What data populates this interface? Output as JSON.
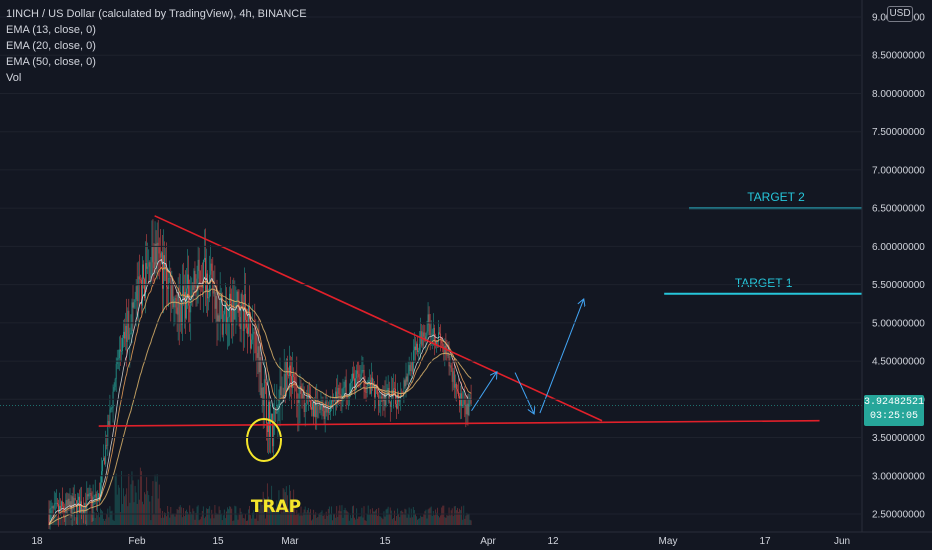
{
  "header": {
    "title": "1INCH / US Dollar (calculated by TradingView), 4h, BINANCE",
    "indicators": [
      "EMA (13, close, 0)",
      "EMA (20, close, 0)",
      "EMA (50, close, 0)",
      "Vol"
    ]
  },
  "currency_badge": "USD",
  "last_price": {
    "value": "3.92482521",
    "countdown": "03:25:05"
  },
  "colors": {
    "background": "#131722",
    "up": "#26a69a",
    "down": "#ef5350",
    "trendline": "#e0202a",
    "target": "#26c6da",
    "arrow": "#42a5f5",
    "annotation": "#f5e62b"
  },
  "chart_data": {
    "type": "candlestick",
    "y_ticks": [
      "2.50000000",
      "3.00000000",
      "3.50000000",
      "4.00000000",
      "4.50000000",
      "5.00000000",
      "5.50000000",
      "6.00000000",
      "6.50000000",
      "7.00000000",
      "7.50000000",
      "8.00000000",
      "8.50000000",
      "9.00000000"
    ],
    "y_tick_values": [
      2.5,
      3.0,
      3.5,
      4.0,
      4.5,
      5.0,
      5.5,
      6.0,
      6.5,
      7.0,
      7.5,
      8.0,
      8.5,
      9.0
    ],
    "x_ticks": [
      "18",
      "Feb",
      "15",
      "Mar",
      "15",
      "Apr",
      "12",
      "May",
      "17",
      "Jun"
    ],
    "ylim": [
      2.45,
      9.1
    ],
    "price_path": [
      [
        "2021-01-18",
        2.5
      ],
      [
        "2021-01-26",
        2.7
      ],
      [
        "2021-01-29",
        4.5
      ],
      [
        "2021-02-01",
        5.3
      ],
      [
        "2021-02-04",
        5.9
      ],
      [
        "2021-02-06",
        5.6
      ],
      [
        "2021-02-08",
        5.2
      ],
      [
        "2021-02-12",
        5.7
      ],
      [
        "2021-02-15",
        5.1
      ],
      [
        "2021-02-18",
        5.2
      ],
      [
        "2021-02-20",
        4.8
      ],
      [
        "2021-02-22",
        3.9
      ],
      [
        "2021-02-23",
        3.55
      ],
      [
        "2021-02-25",
        4.3
      ],
      [
        "2021-02-27",
        4.0
      ],
      [
        "2021-03-03",
        3.85
      ],
      [
        "2021-03-06",
        4.1
      ],
      [
        "2021-03-09",
        4.3
      ],
      [
        "2021-03-12",
        4.05
      ],
      [
        "2021-03-15",
        4.0
      ],
      [
        "2021-03-18",
        4.6
      ],
      [
        "2021-03-20",
        5.0
      ],
      [
        "2021-03-22",
        4.75
      ],
      [
        "2021-03-24",
        4.3
      ],
      [
        "2021-03-26",
        3.8
      ],
      [
        "2021-03-27",
        3.92
      ]
    ],
    "annotations": {
      "targets": [
        {
          "label": "TARGET 2",
          "price": 6.5,
          "from": "2021-05-01",
          "to": "2021-05-29"
        },
        {
          "label": "TARGET 1",
          "price": 5.38,
          "from": "2021-04-27",
          "to": "2021-05-29"
        }
      ],
      "trendlines": [
        {
          "name": "descending-resistance",
          "from": [
            "2021-02-04",
            6.4
          ],
          "to": [
            "2021-04-17",
            3.72
          ]
        },
        {
          "name": "horizontal-support",
          "from": [
            "2021-01-26",
            3.65
          ],
          "to": [
            "2021-05-22",
            3.72
          ]
        }
      ],
      "projection_arrows": [
        {
          "from": [
            "2021-03-27",
            3.85
          ],
          "to": [
            "2021-03-31",
            4.35
          ]
        },
        {
          "from": [
            "2021-04-03",
            4.35
          ],
          "to": [
            "2021-04-06",
            3.82
          ]
        },
        {
          "from": [
            "2021-04-07",
            3.82
          ],
          "to": [
            "2021-04-14",
            5.3
          ]
        }
      ],
      "trap_label": "TRAP"
    }
  }
}
